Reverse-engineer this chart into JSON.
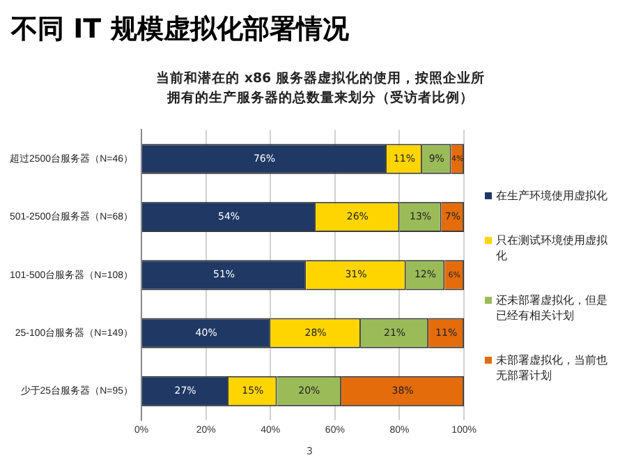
{
  "chart_data": {
    "type": "bar",
    "title": "不同 IT 规模虚拟化部署情况",
    "subtitle": "当前和潜在的 x86 服务器虚拟化的使用，按照企业所拥有的生产服务器的总数量来划分（受访者比例）",
    "orientation": "horizontal",
    "stacked": true,
    "categories": [
      "超过2500台服务器（N=46）",
      "501-2500台服务器（N=68）",
      "101-500台服务器（N=108）",
      "25-100台服务器（N=149）",
      "少于25台服务器（N=95）"
    ],
    "series": [
      {
        "name": "在生产环境使用虚拟化",
        "color": "#1f3864",
        "values": [
          76,
          54,
          51,
          40,
          27
        ],
        "value_labels": [
          "76%",
          "54%",
          "51%",
          "40%",
          "27%"
        ]
      },
      {
        "name": "只在测试环境使用虚拟化",
        "color": "#ffd500",
        "values": [
          11,
          26,
          31,
          28,
          15
        ],
        "value_labels": [
          "11%",
          "26%",
          "31%",
          "28%",
          "15%"
        ]
      },
      {
        "name": "还未部署虚拟化，但是已经有相关计划",
        "color": "#9bbb59",
        "values": [
          9,
          13,
          12,
          21,
          20
        ],
        "value_labels": [
          "9%",
          "13%",
          "12%",
          "21%",
          "20%"
        ]
      },
      {
        "name": "未部署虚拟化，当前也无部署计划",
        "color": "#e46c0a",
        "values": [
          4,
          7,
          6,
          11,
          38
        ],
        "value_labels": [
          "4%",
          "7%",
          "6%",
          "11%",
          "38%"
        ]
      }
    ],
    "xlim": [
      0,
      100
    ],
    "xticks": [
      {
        "value": 0,
        "label": "0%"
      },
      {
        "value": 20,
        "label": "20%"
      },
      {
        "value": 40,
        "label": "40%"
      },
      {
        "value": 60,
        "label": "60%"
      },
      {
        "value": 80,
        "label": "80%"
      },
      {
        "value": 100,
        "label": "100%"
      }
    ],
    "grid": "x",
    "legend": "right",
    "annotations": [
      "3"
    ]
  }
}
